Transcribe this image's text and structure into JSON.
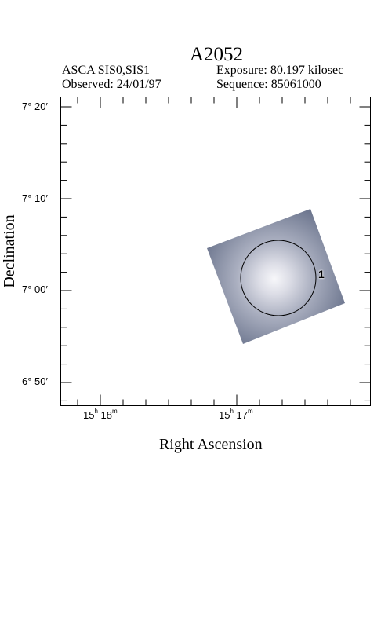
{
  "header": {
    "title": "A2052",
    "instrument": "ASCA SIS0,SIS1",
    "observed": "Observed: 24/01/97",
    "exposure": "Exposure: 80.197 kilosec",
    "sequence": "Sequence: 85061000"
  },
  "axes": {
    "xlabel": "Right Ascension",
    "ylabel": "Declination",
    "x_ticks": [
      {
        "h": "15",
        "m": "18"
      },
      {
        "h": "15",
        "m": "17"
      }
    ],
    "y_ticks": [
      "7° 20′",
      "7° 10′",
      "7° 00′",
      "6° 50′"
    ]
  },
  "region": {
    "label": "1"
  },
  "colors": {
    "frame": "#000000",
    "image_edge": "#6f7890",
    "image_core": "#f4f4f8"
  }
}
